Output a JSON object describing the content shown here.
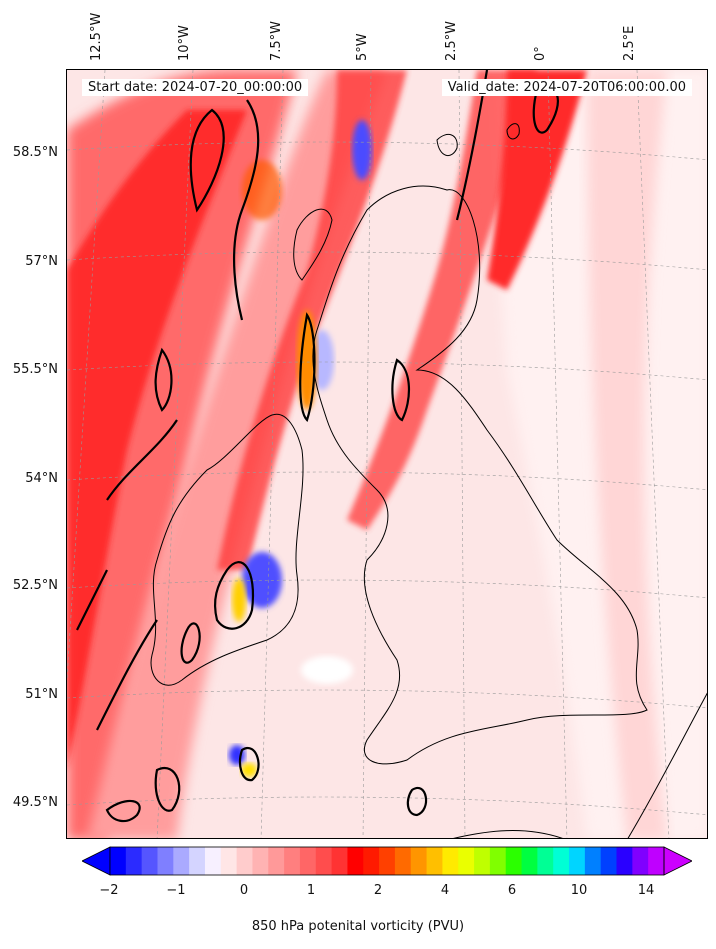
{
  "map": {
    "start_date": "Start date: 2024-07-20_00:00:00",
    "valid_date": "Valid_date: 2024-07-20T06:00:00.00",
    "lon_labels": [
      "12.5°W",
      "10°W",
      "7.5°W",
      "5°W",
      "2.5°W",
      "0°",
      "2.5°E"
    ],
    "lat_labels": [
      "58.5°N",
      "57°N",
      "55.5°N",
      "54°N",
      "52.5°N",
      "51°N",
      "49.5°N"
    ],
    "field": "850 hPa potential vorticity",
    "extent_lon": [
      -13.5,
      3.5
    ],
    "extent_lat": [
      49.0,
      59.5
    ]
  },
  "colorbar": {
    "label": "850 hPa potenital vorticity (PVU)",
    "ticks": [
      "−2",
      "−1",
      "0",
      "1",
      "2",
      "4",
      "6",
      "10",
      "14"
    ],
    "colors": [
      "#0000ff",
      "#2b2bff",
      "#5555ff",
      "#7f7fff",
      "#aaaaff",
      "#d4d4ff",
      "#f7f0ff",
      "#ffe6e6",
      "#ffcccc",
      "#ffb3b3",
      "#ff9999",
      "#ff7f7f",
      "#ff6666",
      "#ff4d4d",
      "#ff3333",
      "#ff0000",
      "#ff1a00",
      "#ff4000",
      "#ff6a00",
      "#ff9500",
      "#ffbf00",
      "#ffea00",
      "#eaff00",
      "#bfff00",
      "#80ff00",
      "#2bff00",
      "#00ff40",
      "#00ff95",
      "#00ffd5",
      "#00d5ff",
      "#0080ff",
      "#0040ff",
      "#2a00ff",
      "#8000ff",
      "#bf00ff"
    ],
    "extend_low_color": "#0000ff",
    "extend_high_color": "#cc00ff"
  }
}
